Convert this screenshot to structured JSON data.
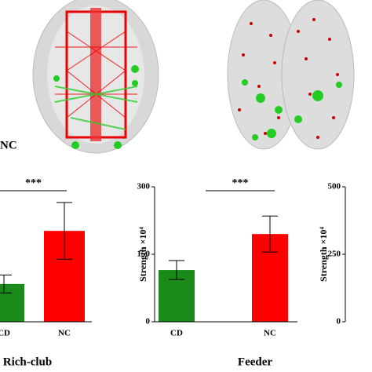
{
  "panel_label": "NC",
  "chart_data": [
    {
      "type": "bar",
      "title": "Rich-club",
      "categories": [
        "CD",
        "NC"
      ],
      "values": [
        84,
        202
      ],
      "errors": [
        20,
        63
      ],
      "colors": [
        "#1a8a1a",
        "#ff0000"
      ],
      "ylim": [
        0,
        300
      ],
      "significance": "***"
    },
    {
      "type": "bar",
      "title": "Feeder",
      "ylabel": "Strength ×10⁴",
      "categories": [
        "CD",
        "NC"
      ],
      "values": [
        115,
        195
      ],
      "errors": [
        21,
        40
      ],
      "colors": [
        "#1a8a1a",
        "#ff0000"
      ],
      "ylim": [
        0,
        300
      ],
      "yticks": [
        0,
        150,
        300
      ],
      "significance": "***"
    },
    {
      "type": "bar",
      "ylabel": "Strength ×10⁴",
      "categories": [],
      "values": [],
      "ylim": [
        0,
        500
      ],
      "yticks": [
        0,
        250,
        500
      ]
    }
  ]
}
